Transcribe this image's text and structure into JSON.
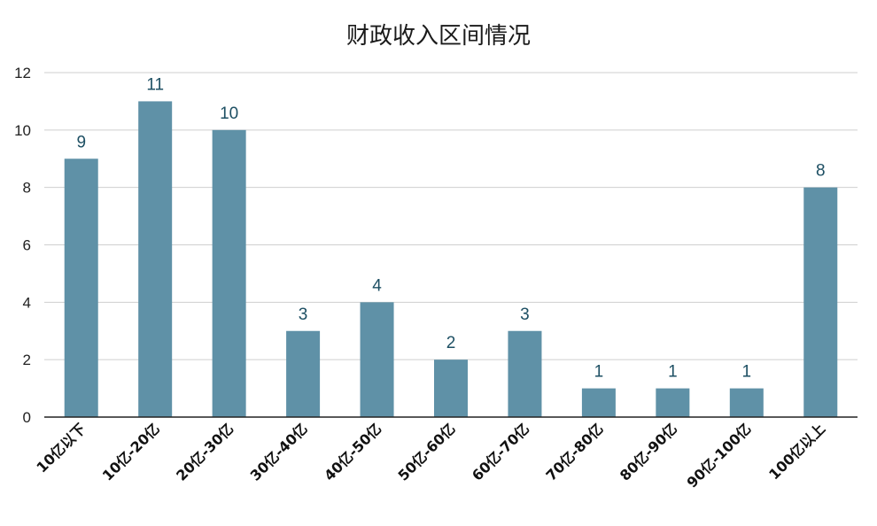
{
  "chart_data": {
    "type": "bar",
    "title": "财政收入区间情况",
    "xlabel": "",
    "ylabel": "",
    "categories": [
      "10亿以下",
      "10亿-20亿",
      "20亿-30亿",
      "30亿-40亿",
      "40亿-50亿",
      "50亿-60亿",
      "60亿-70亿",
      "70亿-80亿",
      "80亿-90亿",
      "90亿-100亿",
      "100亿以上"
    ],
    "values": [
      9,
      11,
      10,
      3,
      4,
      2,
      3,
      1,
      1,
      1,
      8
    ],
    "ylim": [
      0,
      12
    ],
    "yticks": [
      0,
      2,
      4,
      6,
      8,
      10,
      12
    ],
    "grid": true,
    "legend": "none",
    "bar_color": "#5f91a7",
    "label_color": "#1d4f63"
  }
}
